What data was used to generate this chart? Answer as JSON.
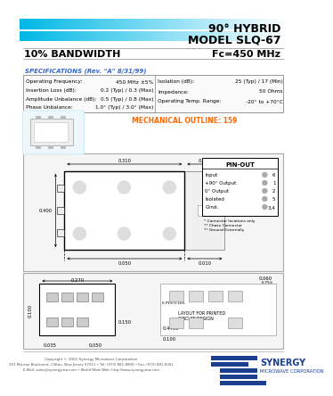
{
  "title_line1": "90° HYBRID",
  "title_line2": "MODEL SLQ-67",
  "subtitle_left": "10% BANDWIDTH",
  "subtitle_right": "Fc=450 MHz",
  "specs_title": "SPECIFICATIONS (Rev. \"A\" 8/31/99)",
  "specs_left": [
    [
      "Operating Frequency:",
      "450 MHz ±5%"
    ],
    [
      "Insertion Loss (dB):",
      "0.2 (Typ) / 0.3 (Max)"
    ],
    [
      "Amplitude Unbalance (dB):",
      "0.5 (Typ) / 0.8 (Max)"
    ],
    [
      "Phase Unbalance:",
      "1.0° (Typ) / 3.0° (Max)"
    ]
  ],
  "specs_right": [
    [
      "Isolation (dB):",
      "25 (Typ) / 17 (Min)"
    ],
    [
      "Impedance:",
      "50 Ohms"
    ],
    [
      "Operating Temp. Range:",
      "-20° to +70°C"
    ]
  ],
  "mechanical_label": "MECHANICAL OUTLINE: 159",
  "pin_out_title": "PIN-OUT",
  "pin_out_items": [
    [
      "Input",
      "6"
    ],
    [
      "+90° Output",
      "1"
    ],
    [
      "0° Output",
      "2"
    ],
    [
      "Isolated",
      "5"
    ],
    [
      "Grnd.",
      "3,4"
    ]
  ],
  "note1": "* Connector locations only",
  "note2": "** Chase Connector",
  "note3": "** Ground Externally",
  "footer_company": "SYNERGY",
  "footer_sub": "MICROWAVE CORPORATION",
  "footer_copy": "Copyright © 2001 Synergy Microwave Corporation",
  "footer_addr": "201 McLean Boulevard, Clifton, New Jersey 07011 • Tel: (973) 881-8800 • Fax: (973) 881-8361",
  "footer_web": "E-Mail: sales@synergymw.com • World Wide Web: http://www.synergymw.com",
  "blue1": "#00B8E6",
  "blue2": "#0099CC",
  "specs_color": "#3366CC",
  "mechanical_color": "#FF6600",
  "synergy_blue": "#1A3F8F",
  "bg_color": "#FFFFFF",
  "light_blue_box": "#D0EEF8"
}
